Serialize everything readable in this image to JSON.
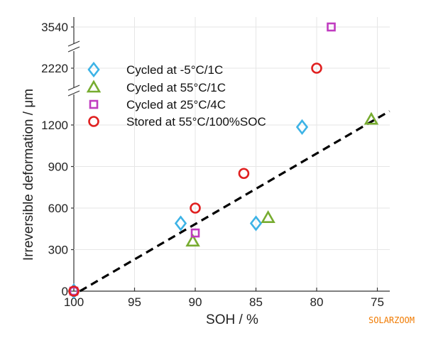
{
  "watermark": "SOLARZOOM",
  "chart_data": {
    "type": "scatter",
    "xlabel": "SOH / %",
    "ylabel": "Irreversible deformation / μm",
    "x_reversed": true,
    "xlim": [
      100,
      74
    ],
    "x_ticks": [
      100,
      95,
      90,
      85,
      80,
      75
    ],
    "y_ticks": [
      0,
      300,
      600,
      900,
      1200,
      2220,
      3540
    ],
    "y_axis_breaks": [
      [
        1400,
        2100
      ],
      [
        2300,
        3400
      ]
    ],
    "legend_position": "upper-left",
    "colors": {
      "diamond": "#3db3e6",
      "triangle": "#77ac30",
      "square": "#c03cc0",
      "circle": "#e02020",
      "fit_line": "#000000"
    },
    "series": [
      {
        "name": "Cycled at -5°C/1C",
        "marker": "diamond",
        "points": [
          [
            100,
            0
          ],
          [
            91.2,
            490
          ],
          [
            85,
            490
          ],
          [
            81.2,
            1185
          ]
        ]
      },
      {
        "name": "Cycled at 55°C/1C",
        "marker": "triangle",
        "points": [
          [
            90.2,
            360
          ],
          [
            84,
            530
          ],
          [
            75.5,
            1240
          ]
        ]
      },
      {
        "name": "Cycled at 25°C/4C",
        "marker": "square",
        "points": [
          [
            100,
            0
          ],
          [
            90,
            420
          ],
          [
            78.8,
            3540
          ]
        ]
      },
      {
        "name": "Stored at 55°C/100%SOC",
        "marker": "circle",
        "points": [
          [
            100,
            0
          ],
          [
            90,
            600
          ],
          [
            86,
            850
          ],
          [
            80,
            2220
          ]
        ]
      }
    ],
    "fit_line": {
      "style": "dashed",
      "points": [
        [
          99.5,
          0
        ],
        [
          74,
          1300
        ]
      ]
    }
  }
}
